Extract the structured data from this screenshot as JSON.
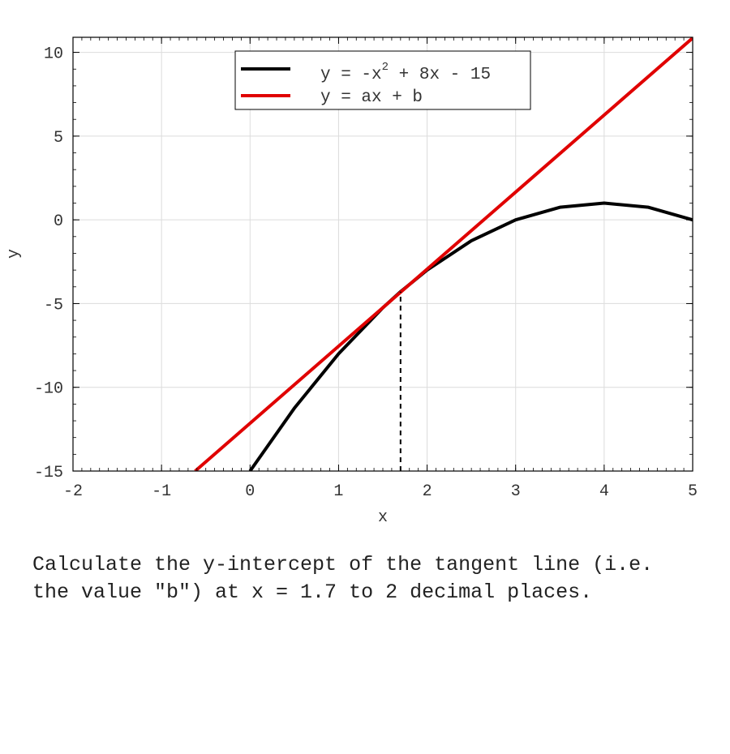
{
  "chart_data": {
    "type": "line",
    "xlabel": "x",
    "ylabel": "y",
    "xlim": [
      -2,
      5
    ],
    "ylim": [
      -15,
      10.9
    ],
    "x_ticks": [
      "-2",
      "-1",
      "0",
      "1",
      "2",
      "3",
      "4",
      "5"
    ],
    "y_ticks": [
      "-15",
      "-10",
      "-5",
      "0",
      "5",
      "10"
    ],
    "grid": true,
    "legend_position": "top-center",
    "series": [
      {
        "name": "y = -x² + 8x - 15",
        "label_main": "y = -x",
        "label_sup": "2",
        "label_tail": " + 8x - 15",
        "color": "#000000",
        "x": [
          0.0,
          0.5,
          1.0,
          1.5,
          1.7,
          2.0,
          2.5,
          3.0,
          3.5,
          4.0,
          4.5,
          5.0
        ],
        "y": [
          -15.0,
          -11.25,
          -8.0,
          -5.25,
          -4.29,
          -3.0,
          -1.25,
          0.0,
          0.75,
          1.0,
          0.75,
          0.0
        ]
      },
      {
        "name": "y = ax + b",
        "label_main": "y = ax + b",
        "color": "#e00000",
        "x": [
          -0.62,
          5.0
        ],
        "y": [
          -15.0,
          10.86
        ]
      }
    ],
    "annotations": [
      {
        "type": "vertical-dashed-line",
        "x": 1.7,
        "y_from": -15,
        "y_to": -4.29,
        "color": "#000000"
      }
    ]
  },
  "question": {
    "text": "Calculate the y-intercept of the tangent line (i.e. the value \"b\") at x = 1.7 to 2 decimal places."
  }
}
